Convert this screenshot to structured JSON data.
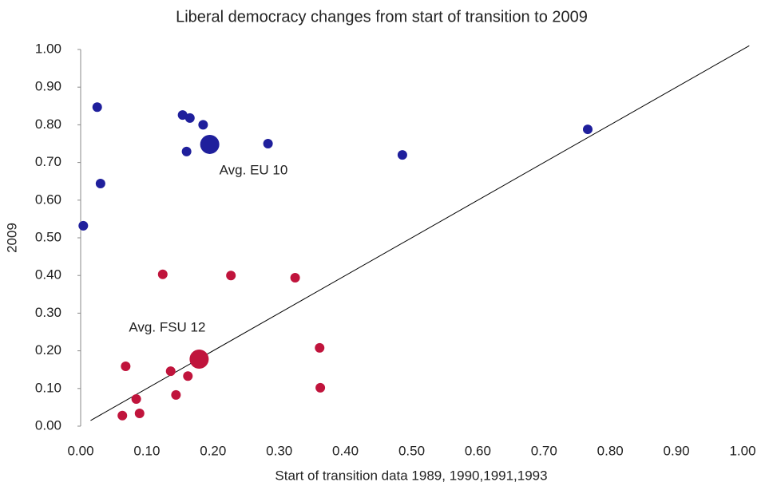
{
  "chart_data": {
    "type": "scatter",
    "title": "Liberal democracy changes from start of transition to 2009",
    "x_label": "Start of transition data 1989, 1990,1991,1993",
    "y_label": "2009",
    "xlim": [
      0,
      1
    ],
    "ylim": [
      0,
      1
    ],
    "xticks": [
      {
        "value": 0,
        "label": "0.00"
      },
      {
        "value": 0.1,
        "label": "0.10"
      },
      {
        "value": 0.2,
        "label": "0.20"
      },
      {
        "value": 0.3,
        "label": "0.30"
      },
      {
        "value": 0.4,
        "label": "0.40"
      },
      {
        "value": 0.5,
        "label": "0.50"
      },
      {
        "value": 0.6,
        "label": "0.60"
      },
      {
        "value": 0.7,
        "label": "0.70"
      },
      {
        "value": 0.8,
        "label": "0.80"
      },
      {
        "value": 0.9,
        "label": "0.90"
      },
      {
        "value": 1,
        "label": "1.00"
      }
    ],
    "yticks": [
      {
        "value": 0,
        "label": "0.00"
      },
      {
        "value": 0.1,
        "label": "0.10"
      },
      {
        "value": 0.2,
        "label": "0.20"
      },
      {
        "value": 0.3,
        "label": "0.30"
      },
      {
        "value": 0.4,
        "label": "0.40"
      },
      {
        "value": 0.5,
        "label": "0.50"
      },
      {
        "value": 0.6,
        "label": "0.60"
      },
      {
        "value": 0.7,
        "label": "0.70"
      },
      {
        "value": 0.8,
        "label": "0.80"
      },
      {
        "value": 0.9,
        "label": "0.90"
      },
      {
        "value": 1,
        "label": "1.00"
      }
    ],
    "grid": false,
    "series": [
      {
        "color": "#1f1f9c",
        "size": "small",
        "x": [
          0.025,
          0.154,
          0.165,
          0.185,
          0.16,
          0.283,
          0.486,
          0.766,
          0.03,
          0.004
        ],
        "values": [
          0.847,
          0.826,
          0.818,
          0.8,
          0.729,
          0.75,
          0.72,
          0.788,
          0.644,
          0.532
        ]
      },
      {
        "color": "#1f1f9c",
        "size": "large",
        "annotation": "Avg. EU 10",
        "annotation_position": "below-right",
        "x": [
          0.195
        ],
        "values": [
          0.748
        ]
      },
      {
        "color": "#c0143c",
        "size": "small",
        "x": [
          0.124,
          0.227,
          0.324,
          0.361,
          0.362,
          0.068,
          0.136,
          0.162,
          0.084,
          0.144,
          0.063,
          0.089
        ],
        "values": [
          0.403,
          0.4,
          0.394,
          0.208,
          0.102,
          0.159,
          0.146,
          0.133,
          0.072,
          0.083,
          0.028,
          0.034
        ]
      },
      {
        "color": "#c0143c",
        "size": "large",
        "annotation": "Avg. FSU 12",
        "annotation_position": "above-left",
        "x": [
          0.179
        ],
        "values": [
          0.178
        ]
      }
    ],
    "reference_line": {
      "color": "#000000",
      "x": [
        0.015,
        1.01
      ],
      "values": [
        0.015,
        1.01
      ]
    }
  }
}
